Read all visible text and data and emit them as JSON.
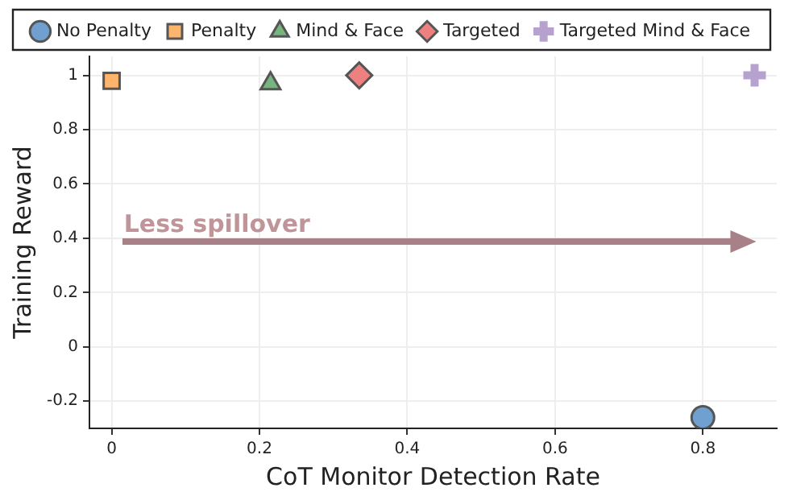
{
  "chart_data": {
    "type": "scatter",
    "xlabel": "CoT Monitor Detection Rate",
    "ylabel": "Training Reward",
    "xlim": [
      -0.03,
      0.9
    ],
    "xticks": [
      0,
      0.2,
      0.4,
      0.6,
      0.8
    ],
    "ylim": [
      -0.3,
      1.07
    ],
    "yticks": [
      -0.2,
      0,
      0.2,
      0.4,
      0.6,
      0.8,
      1
    ],
    "grid": true,
    "legend": "top",
    "series": [
      {
        "name": "No Penalty",
        "color": "#6fa0d0",
        "marker": "circle",
        "x": [
          0.8
        ],
        "values": [
          -0.26
        ]
      },
      {
        "name": "Penalty",
        "color": "#fdb46c",
        "marker": "square",
        "x": [
          0.0
        ],
        "values": [
          0.98
        ]
      },
      {
        "name": "Mind & Face",
        "color": "#77b57f",
        "marker": "triangle",
        "x": [
          0.215
        ],
        "values": [
          0.97
        ]
      },
      {
        "name": "Targeted",
        "color": "#ef8080",
        "marker": "diamond",
        "x": [
          0.335
        ],
        "values": [
          1.0
        ]
      },
      {
        "name": "Targeted Mind & Face",
        "color": "#b7a2cf",
        "marker": "cross",
        "x": [
          0.87
        ],
        "values": [
          1.0
        ]
      }
    ],
    "annotations": [
      "Less spillover"
    ]
  }
}
